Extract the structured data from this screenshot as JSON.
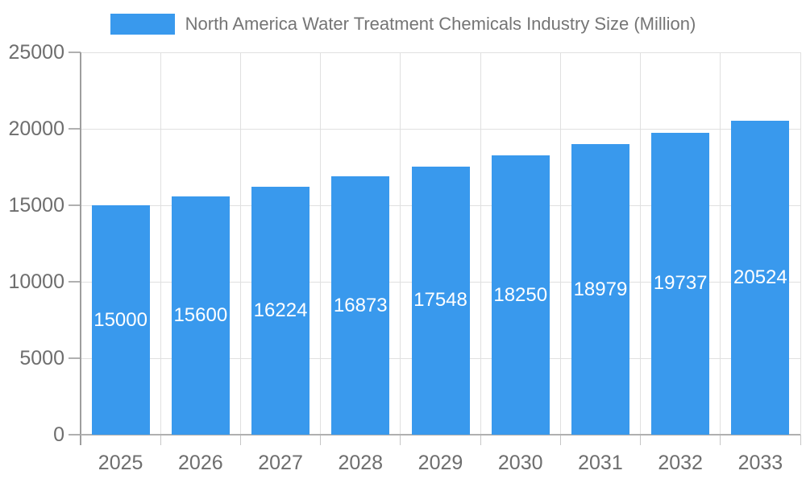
{
  "chart_data": {
    "type": "bar",
    "title": "North America Water Treatment Chemicals Industry Size (Million)",
    "categories": [
      "2025",
      "2026",
      "2027",
      "2028",
      "2029",
      "2030",
      "2031",
      "2032",
      "2033"
    ],
    "values": [
      15000,
      15600,
      16224,
      16873,
      17548,
      18250,
      18979,
      19737,
      20524
    ],
    "xlabel": "",
    "ylabel": "",
    "ylim": [
      0,
      25000
    ],
    "yticks": [
      0,
      5000,
      10000,
      15000,
      20000,
      25000
    ],
    "grid": true,
    "legend_position": "top",
    "bar_color": "#3999ed",
    "bar_label_color": "#ffffff",
    "axis_label_color": "#6e6e6e",
    "title_color": "#757575",
    "grid_color": "#e0e0e0",
    "axis_line_color": "#9e9e9e",
    "tick_color": "#b0b0b0",
    "boundary_tick_color": "#c6c6c6"
  }
}
